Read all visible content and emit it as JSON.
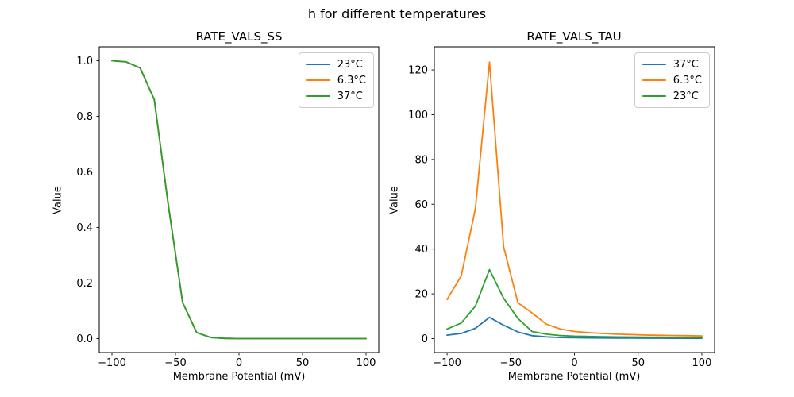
{
  "figure_title": "h for different temperatures",
  "colors": {
    "blue": "#1f77b4",
    "orange": "#ff7f0e",
    "green": "#2ca02c",
    "text": "#000000",
    "background": "#ffffff",
    "legend_border": "#cccccc"
  },
  "chart_data": [
    {
      "type": "line",
      "title": "RATE_VALS_SS",
      "xlabel": "Membrane Potential (mV)",
      "ylabel": "Value",
      "grid": false,
      "legend_position": "upper right",
      "xlim": [
        -110,
        110
      ],
      "ylim": [
        -0.05,
        1.05
      ],
      "xticks": [
        -100,
        -50,
        0,
        50,
        100
      ],
      "xtick_labels": [
        "−100",
        "−50",
        "0",
        "50",
        "100"
      ],
      "yticks": [
        0.0,
        0.2,
        0.4,
        0.6,
        0.8,
        1.0
      ],
      "ytick_labels": [
        "0.0",
        "0.2",
        "0.4",
        "0.6",
        "0.8",
        "1.0"
      ],
      "x": [
        -100,
        -88.9,
        -77.8,
        -66.7,
        -55.6,
        -44.4,
        -33.3,
        -22.2,
        -11.1,
        0,
        11.1,
        22.2,
        33.3,
        44.4,
        55.6,
        66.7,
        77.8,
        88.9,
        100
      ],
      "series": [
        {
          "name": "23°C",
          "color": "#1f77b4",
          "values": [
            1.0,
            0.996,
            0.974,
            0.86,
            0.48,
            0.13,
            0.022,
            0.004,
            0.001,
            0,
            0,
            0,
            0,
            0,
            0,
            0,
            0,
            0,
            0
          ]
        },
        {
          "name": "6.3°C",
          "color": "#ff7f0e",
          "values": [
            1.0,
            0.996,
            0.974,
            0.86,
            0.48,
            0.13,
            0.022,
            0.004,
            0.001,
            0,
            0,
            0,
            0,
            0,
            0,
            0,
            0,
            0,
            0
          ]
        },
        {
          "name": "37°C",
          "color": "#2ca02c",
          "values": [
            1.0,
            0.996,
            0.974,
            0.86,
            0.48,
            0.13,
            0.022,
            0.004,
            0.001,
            0,
            0,
            0,
            0,
            0,
            0,
            0,
            0,
            0,
            0
          ]
        }
      ]
    },
    {
      "type": "line",
      "title": "RATE_VALS_TAU",
      "xlabel": "Membrane Potential (mV)",
      "ylabel": "Value",
      "grid": false,
      "legend_position": "upper right",
      "xlim": [
        -110,
        110
      ],
      "ylim": [
        -6.2,
        130.3
      ],
      "xticks": [
        -100,
        -50,
        0,
        50,
        100
      ],
      "xtick_labels": [
        "−100",
        "−50",
        "0",
        "50",
        "100"
      ],
      "yticks": [
        0,
        20,
        40,
        60,
        80,
        100,
        120
      ],
      "ytick_labels": [
        "0",
        "20",
        "40",
        "60",
        "80",
        "100",
        "120"
      ],
      "x": [
        -100,
        -88.9,
        -77.8,
        -66.7,
        -55.6,
        -44.4,
        -33.3,
        -22.2,
        -11.1,
        0,
        11.1,
        22.2,
        33.3,
        44.4,
        55.6,
        66.7,
        77.8,
        88.9,
        100
      ],
      "series": [
        {
          "name": "37°C",
          "color": "#1f77b4",
          "values": [
            1.55,
            2.3,
            4.6,
            9.5,
            6.0,
            3.0,
            1.3,
            0.8,
            0.5,
            0.4,
            0.33,
            0.28,
            0.24,
            0.21,
            0.19,
            0.17,
            0.15,
            0.14,
            0.13
          ]
        },
        {
          "name": "6.3°C",
          "color": "#ff7f0e",
          "values": [
            17.5,
            28,
            58,
            123.5,
            41,
            16,
            11.5,
            6.5,
            4.3,
            3.2,
            2.7,
            2.3,
            2.0,
            1.8,
            1.6,
            1.5,
            1.4,
            1.3,
            1.2
          ]
        },
        {
          "name": "23°C",
          "color": "#2ca02c",
          "values": [
            4.3,
            7.0,
            14.5,
            30.8,
            18,
            9,
            3.2,
            2.0,
            1.4,
            1.1,
            0.95,
            0.85,
            0.75,
            0.7,
            0.65,
            0.6,
            0.55,
            0.5,
            0.45
          ]
        }
      ]
    }
  ]
}
